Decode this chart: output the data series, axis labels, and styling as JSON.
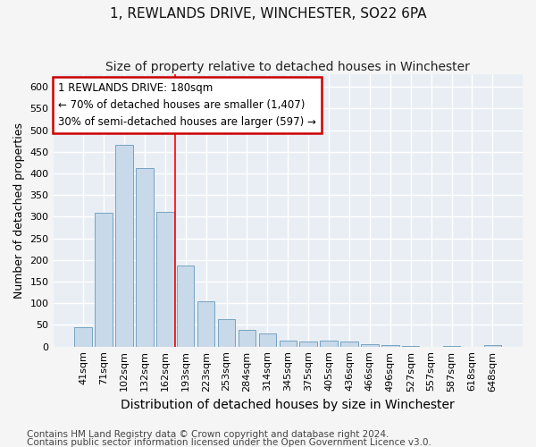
{
  "title": "1, REWLANDS DRIVE, WINCHESTER, SO22 6PA",
  "subtitle": "Size of property relative to detached houses in Winchester",
  "xlabel": "Distribution of detached houses by size in Winchester",
  "ylabel": "Number of detached properties",
  "categories": [
    "41sqm",
    "71sqm",
    "102sqm",
    "132sqm",
    "162sqm",
    "193sqm",
    "223sqm",
    "253sqm",
    "284sqm",
    "314sqm",
    "345sqm",
    "375sqm",
    "405sqm",
    "436sqm",
    "466sqm",
    "496sqm",
    "527sqm",
    "557sqm",
    "587sqm",
    "618sqm",
    "648sqm"
  ],
  "values": [
    45,
    310,
    467,
    412,
    312,
    187,
    104,
    64,
    38,
    31,
    13,
    11,
    13,
    11,
    5,
    3,
    1,
    0,
    2,
    0,
    3
  ],
  "bar_color": "#c8d9ea",
  "bar_edge_color": "#6699bb",
  "red_line_x": 4.5,
  "annotation_text": "1 REWLANDS DRIVE: 180sqm\n← 70% of detached houses are smaller (1,407)\n30% of semi-detached houses are larger (597) →",
  "annotation_box_color": "#ffffff",
  "annotation_box_edge": "#cc0000",
  "ylim": [
    0,
    630
  ],
  "yticks": [
    0,
    50,
    100,
    150,
    200,
    250,
    300,
    350,
    400,
    450,
    500,
    550,
    600
  ],
  "footnote1": "Contains HM Land Registry data © Crown copyright and database right 2024.",
  "footnote2": "Contains public sector information licensed under the Open Government Licence v3.0.",
  "plot_bg_color": "#e8eef4",
  "fig_bg_color": "#f5f5f5",
  "grid_color": "#ffffff",
  "title_fontsize": 11,
  "subtitle_fontsize": 10,
  "xlabel_fontsize": 10,
  "ylabel_fontsize": 9,
  "tick_fontsize": 8,
  "annot_fontsize": 8.5,
  "footnote_fontsize": 7.5
}
